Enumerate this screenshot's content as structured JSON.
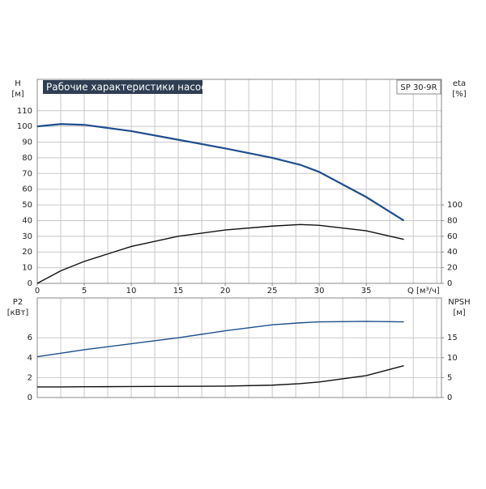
{
  "chart_data": [
    {
      "type": "line",
      "title": "Рабочие характеристики насоса",
      "model": "SP 30-9R",
      "y_label": "H",
      "y_unit": "[м]",
      "y2_label": "eta",
      "y2_unit": "[%]",
      "x_label": "Q [м³/ч]",
      "x": [
        0,
        2.5,
        5,
        10,
        15,
        20,
        25,
        28,
        30,
        35,
        39
      ],
      "xlim": [
        0,
        43
      ],
      "xticks": [
        0,
        5,
        10,
        15,
        20,
        25,
        30,
        35
      ],
      "ylim": [
        0,
        130
      ],
      "yticks": [
        0,
        10,
        20,
        30,
        40,
        50,
        60,
        70,
        80,
        90,
        100,
        110
      ],
      "y2lim": [
        0,
        260
      ],
      "y2ticks": [
        0,
        20,
        40,
        60,
        80,
        100
      ],
      "grid": true,
      "series": [
        {
          "name": "H",
          "color": "#1f4e8c",
          "values": [
            100,
            101.5,
            101,
            97,
            91.5,
            86,
            80,
            75.5,
            71,
            55,
            40
          ]
        },
        {
          "name": "eta",
          "color": "#111111",
          "axis": "y2",
          "values": [
            0,
            16,
            28,
            47,
            60,
            68,
            73,
            75,
            74,
            67,
            56
          ]
        }
      ]
    },
    {
      "type": "line",
      "y_label": "P2",
      "y_unit": "[кВт]",
      "y2_label": "NPSH",
      "y2_unit": "[м]",
      "x": [
        0,
        2.5,
        5,
        10,
        15,
        20,
        25,
        28,
        30,
        35,
        39
      ],
      "xlim": [
        0,
        43
      ],
      "ylim": [
        0,
        10
      ],
      "yticks": [
        0,
        2,
        4,
        6
      ],
      "y2lim": [
        0,
        25
      ],
      "y2ticks": [
        0,
        5,
        10,
        15
      ],
      "grid": true,
      "series": [
        {
          "name": "P2",
          "color": "#1f4e8c",
          "values": [
            4.1,
            4.45,
            4.8,
            5.4,
            6.0,
            6.7,
            7.3,
            7.5,
            7.6,
            7.65,
            7.6
          ]
        },
        {
          "name": "NPSH",
          "color": "#111111",
          "axis": "y2",
          "values": [
            2.65,
            2.65,
            2.7,
            2.75,
            2.8,
            2.85,
            3.1,
            3.5,
            3.9,
            5.5,
            8
          ]
        }
      ]
    }
  ]
}
